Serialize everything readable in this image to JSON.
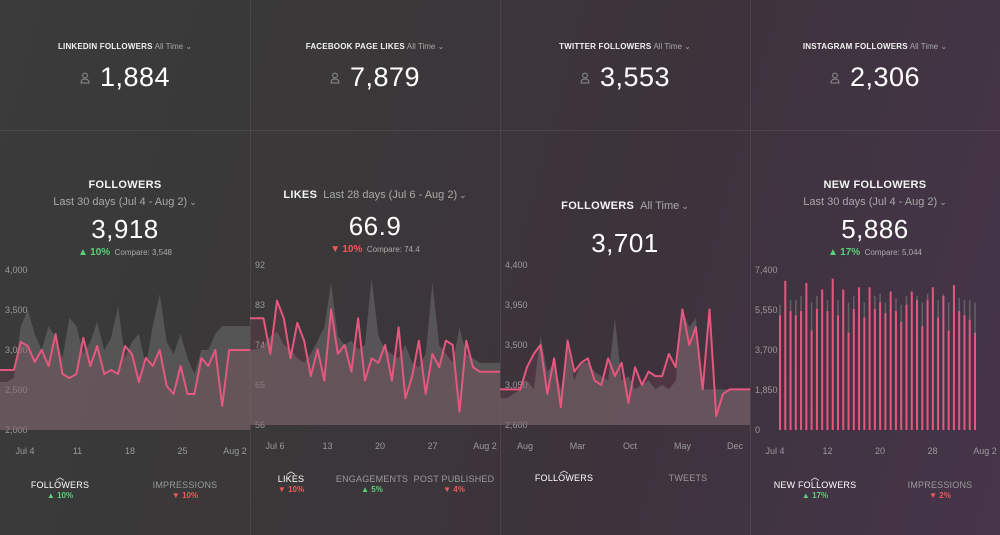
{
  "stats": [
    {
      "title": "LINKEDIN FOLLOWERS",
      "range": "All Time",
      "value": "1,884",
      "icon": "user-icon"
    },
    {
      "title": "FACEBOOK PAGE LIKES",
      "range": "All Time",
      "value": "7,879",
      "icon": "user-icon"
    },
    {
      "title": "TWITTER FOLLOWERS",
      "range": "All Time",
      "value": "3,553",
      "icon": "user-icon"
    },
    {
      "title": "INSTAGRAM FOLLOWERS",
      "range": "All Time",
      "value": "2,306",
      "icon": "user-icon"
    }
  ],
  "colors": {
    "line": "#e4587f",
    "shadow": "#6e6e6e",
    "up": "#5cd07a",
    "down": "#ef5a5a"
  },
  "panels": [
    {
      "title": "FOLLOWERS",
      "range": "Last 30 days (Jul 4 - Aug 2)",
      "value": "3,918",
      "delta": "10%",
      "delta_dir": "up",
      "compare": "Compare: 3,548",
      "tabs": [
        {
          "label": "FOLLOWERS",
          "delta": "10%",
          "dir": "up",
          "active": true
        },
        {
          "label": "IMPRESSIONS",
          "delta": "10%",
          "dir": "down",
          "active": false
        }
      ]
    },
    {
      "title": "LIKES",
      "range": "Last 28 days (Jul 6 - Aug 2)",
      "value": "66.9",
      "delta": "10%",
      "delta_dir": "down",
      "compare": "Compare: 74.4",
      "tabs": [
        {
          "label": "LIKES",
          "delta": "10%",
          "dir": "down",
          "active": true
        },
        {
          "label": "ENGAGEMENTS",
          "delta": "5%",
          "dir": "up",
          "active": false
        },
        {
          "label": "POST PUBLISHED",
          "delta": "4%",
          "dir": "down",
          "active": false
        }
      ]
    },
    {
      "title": "FOLLOWERS",
      "range": "All Time",
      "value": "3,701",
      "tabs": [
        {
          "label": "FOLLOWERS",
          "active": true
        },
        {
          "label": "TWEETS",
          "active": false
        }
      ]
    },
    {
      "title": "NEW FOLLOWERS",
      "range": "Last 30 days (Jul 4 - Aug 2)",
      "value": "5,886",
      "delta": "17%",
      "delta_dir": "up",
      "compare": "Compare: 5,044",
      "tabs": [
        {
          "label": "NEW FOLLOWERS",
          "delta": "17%",
          "dir": "up",
          "active": true
        },
        {
          "label": "IMPRESSIONS",
          "delta": "2%",
          "dir": "down",
          "active": false
        }
      ]
    }
  ],
  "chart_data": [
    {
      "type": "line",
      "ylabels": [
        "4,000",
        "3,500",
        "3,000",
        "2,500",
        "2,000"
      ],
      "ylim": [
        2000,
        4000
      ],
      "xlabels": [
        "Jul 4",
        "11",
        "18",
        "25",
        "Aug 2"
      ],
      "series": [
        {
          "values": [
            2750,
            2750,
            2750,
            3100,
            3050,
            2850,
            3000,
            2800,
            3200,
            2700,
            2650,
            2700,
            3150,
            2800,
            3050,
            2700,
            2750,
            2700,
            3050,
            2950,
            2600,
            2900,
            2800,
            3000,
            2550,
            2450,
            2800,
            2450,
            2450,
            2900,
            2800,
            3000,
            2300,
            3000,
            3000,
            3000,
            3000
          ]
        },
        {
          "values": [
            2600,
            2600,
            2650,
            3300,
            3500,
            3200,
            3000,
            3300,
            3150,
            2900,
            3400,
            3300,
            2950,
            3100,
            3350,
            3000,
            3150,
            3550,
            2900,
            3100,
            3200,
            2800,
            3300,
            3700,
            3100,
            2950,
            3200,
            2900,
            2700,
            3000,
            3000,
            3200,
            3300,
            3300,
            3300,
            3300,
            3300
          ]
        }
      ]
    },
    {
      "type": "line",
      "ylabels": [
        "92",
        "83",
        "74",
        "65",
        "56"
      ],
      "ylim": [
        56,
        92
      ],
      "xlabels": [
        "Jul 6",
        "13",
        "20",
        "27",
        "Aug 2"
      ],
      "series": [
        {
          "values": [
            80,
            80,
            80,
            72,
            84,
            80,
            71,
            79,
            75,
            67,
            73,
            66,
            82,
            72,
            74,
            68,
            80,
            66,
            71,
            70,
            74,
            66,
            78,
            62,
            67,
            75,
            63,
            72,
            69,
            75,
            74,
            59,
            75,
            69,
            68,
            68,
            68,
            68
          ]
        },
        {
          "values": [
            73,
            73,
            74,
            76,
            77,
            74,
            73,
            71,
            70,
            72,
            75,
            78,
            88,
            76,
            74,
            75,
            73,
            74,
            89,
            76,
            73,
            72,
            71,
            74,
            70,
            69,
            72,
            88,
            74,
            72,
            70,
            78,
            72,
            71,
            70,
            70,
            70,
            70
          ]
        }
      ]
    },
    {
      "type": "line",
      "ylabels": [
        "4,400",
        "3,950",
        "3,500",
        "3,050",
        "2,600"
      ],
      "ylim": [
        2600,
        4400
      ],
      "xlabels": [
        "Aug",
        "Mar",
        "Oct",
        "May",
        "Dec"
      ],
      "series": [
        {
          "values": [
            3000,
            3000,
            3000,
            3000,
            3250,
            3400,
            3500,
            2950,
            3350,
            2800,
            3550,
            3200,
            3300,
            3350,
            3100,
            3050,
            3350,
            3150,
            3300,
            2850,
            3250,
            3050,
            3200,
            3150,
            3150,
            3400,
            3250,
            3900,
            3500,
            3700,
            3000,
            3900,
            2700,
            2950,
            3000,
            3000,
            3000,
            3000
          ]
        },
        {
          "values": [
            2900,
            2900,
            2950,
            3000,
            3100,
            3000,
            3600,
            3200,
            3300,
            3000,
            3500,
            3100,
            3300,
            3300,
            3200,
            3150,
            3100,
            3800,
            3100,
            3150,
            3000,
            3050,
            3100,
            3000,
            3050,
            3000,
            3100,
            3900,
            3700,
            3800,
            3000,
            3000,
            3000,
            3000,
            3000,
            3000,
            3000,
            3000
          ]
        }
      ]
    },
    {
      "type": "bar",
      "ylabels": [
        "7,400",
        "5,550",
        "3,700",
        "1,850",
        "0"
      ],
      "ylim": [
        0,
        7400
      ],
      "xlabels": [
        "Jul 4",
        "12",
        "20",
        "28",
        "Aug 2"
      ],
      "series": [
        {
          "values": [
            5300,
            6900,
            5500,
            5300,
            5500,
            6800,
            4600,
            5600,
            6500,
            5500,
            7000,
            5300,
            6500,
            4500,
            5600,
            6600,
            5200,
            6600,
            5600,
            5900,
            5400,
            6400,
            5500,
            5000,
            5800,
            6400,
            6000,
            4800,
            6000,
            6600,
            5200,
            6200,
            4600,
            6700,
            5500,
            5300,
            5100,
            4500
          ]
        },
        {
          "values": [
            5800,
            6600,
            6000,
            6000,
            6200,
            6600,
            5900,
            6200,
            6400,
            6000,
            6600,
            6000,
            6400,
            5900,
            6200,
            6500,
            5900,
            6500,
            6200,
            6300,
            5900,
            6400,
            6100,
            5800,
            6200,
            6300,
            6200,
            5900,
            6300,
            6400,
            6000,
            6300,
            5900,
            6500,
            6100,
            6000,
            6000,
            5900
          ]
        }
      ]
    }
  ]
}
